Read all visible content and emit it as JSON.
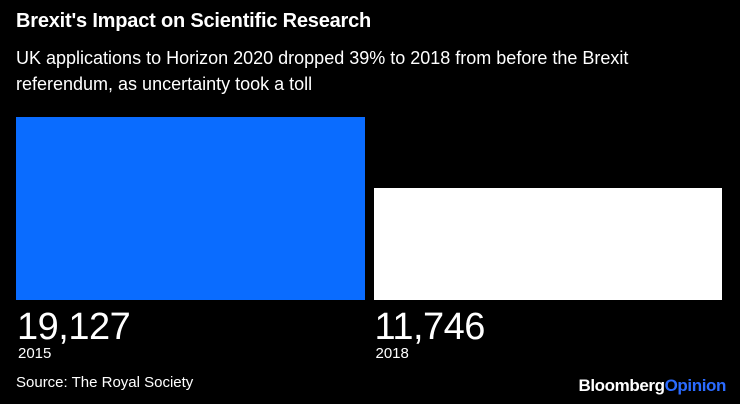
{
  "header": {
    "title": "Brexit's Impact on Scientific Research",
    "subtitle": "UK applications to Horizon 2020 dropped 39% to 2018 from before the Brexit referendum, as uncertainty took a toll"
  },
  "chart_data": {
    "type": "bar",
    "title": "Brexit's Impact on Scientific Research",
    "subtitle": "UK applications to Horizon 2020 dropped 39% to 2018 from before the Brexit referendum, as uncertainty took a toll",
    "categories": [
      "2015",
      "2018"
    ],
    "values": [
      19127,
      11746
    ],
    "value_labels": [
      "19,127",
      "11,746"
    ],
    "bar_colors": [
      "#0a6cff",
      "#ffffff"
    ],
    "xlabel": "",
    "ylabel": "",
    "ylim": [
      0,
      19127
    ],
    "grid": false,
    "legend": "none"
  },
  "footer": {
    "source": "Source: The Royal Society",
    "brand_part1": "Bloomberg",
    "brand_part2": "Opinion"
  },
  "colors": {
    "background": "#000000",
    "text": "#ffffff",
    "brand_accent": "#2b6bff"
  }
}
